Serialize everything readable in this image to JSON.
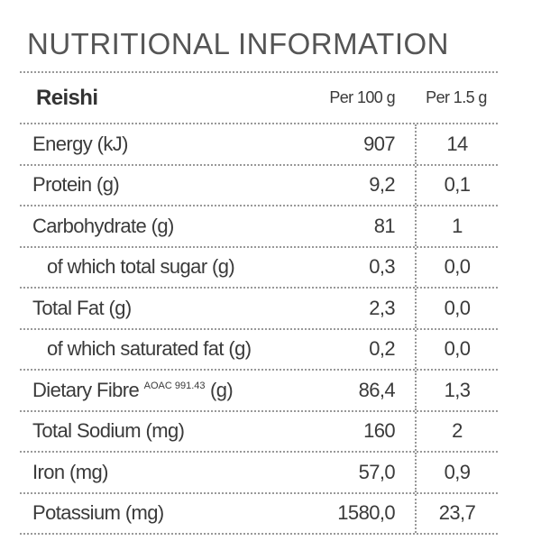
{
  "title": "NUTRITIONAL INFORMATION",
  "table": {
    "header": [
      "Reishi",
      "Per 100 g",
      "Per 1.5 g"
    ],
    "rows": [
      {
        "label": "Energy (kJ)",
        "values": [
          "907",
          "14"
        ]
      },
      {
        "label": "Protein (g)",
        "values": [
          "9,2",
          "0,1"
        ]
      },
      {
        "label": "Carbohydrate (g)",
        "values": [
          "81",
          "1"
        ]
      },
      {
        "label": "of which total sugar (g)",
        "values": [
          "0,3",
          "0,0"
        ]
      },
      {
        "label": "Total Fat (g)",
        "values": [
          "2,3",
          "0,0"
        ]
      },
      {
        "label": "of which saturated fat (g)",
        "values": [
          "0,2",
          "0,0"
        ]
      },
      {
        "label": "Dietary Fibre",
        "superscript": "AOAC 991.43",
        "unit": "(g)",
        "values": [
          "86,4",
          "1,3"
        ]
      },
      {
        "label": "Total Sodium (mg)",
        "values": [
          "160",
          "2"
        ]
      },
      {
        "label": "Iron (mg)",
        "values": [
          "57,0",
          "0,9"
        ]
      },
      {
        "label": "Potassium (mg)",
        "values": [
          "1580,0",
          "23,7"
        ]
      }
    ]
  }
}
